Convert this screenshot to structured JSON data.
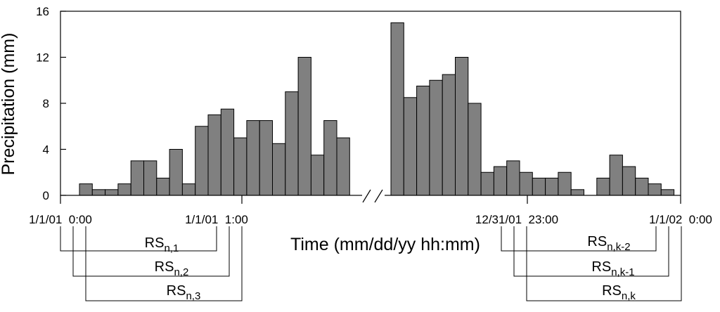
{
  "chart_data": {
    "type": "bar",
    "title": "",
    "ylabel": "Precipitation (mm)",
    "xlabel": "Time (mm/dd/yy hh:mm)",
    "ylim": [
      0,
      16
    ],
    "yticks": [
      "0",
      "4",
      "8",
      "12",
      "16"
    ],
    "grid": false,
    "axis_break": true,
    "bar_color": "#808080",
    "segments": [
      {
        "name": "start",
        "values": [
          1,
          0.5,
          0.5,
          1,
          3,
          3,
          1.5,
          4,
          1,
          6,
          7,
          7.5,
          5,
          6.5,
          6.5,
          4.5,
          9,
          12,
          3.5,
          6.5,
          5
        ]
      },
      {
        "name": "end",
        "values": [
          15,
          8.5,
          9.5,
          10,
          10.5,
          12,
          8,
          2,
          2.5,
          3,
          2,
          1.5,
          1.5,
          2,
          0.5,
          0,
          1.5,
          3.5,
          2.5,
          1.5,
          1,
          0.5
        ]
      }
    ],
    "x_date_labels": [
      "1/1/01  0:00",
      "1/1/01  1:00",
      "12/31/01  23:00",
      "1/1/02  0:00"
    ],
    "windows": [
      {
        "base": "RS",
        "sub": "n,1"
      },
      {
        "base": "RS",
        "sub": "n,2"
      },
      {
        "base": "RS",
        "sub": "n,3"
      },
      {
        "base": "RS",
        "sub": "n,k-2"
      },
      {
        "base": "RS",
        "sub": "n,k-1"
      },
      {
        "base": "RS",
        "sub": "n,k"
      }
    ]
  }
}
